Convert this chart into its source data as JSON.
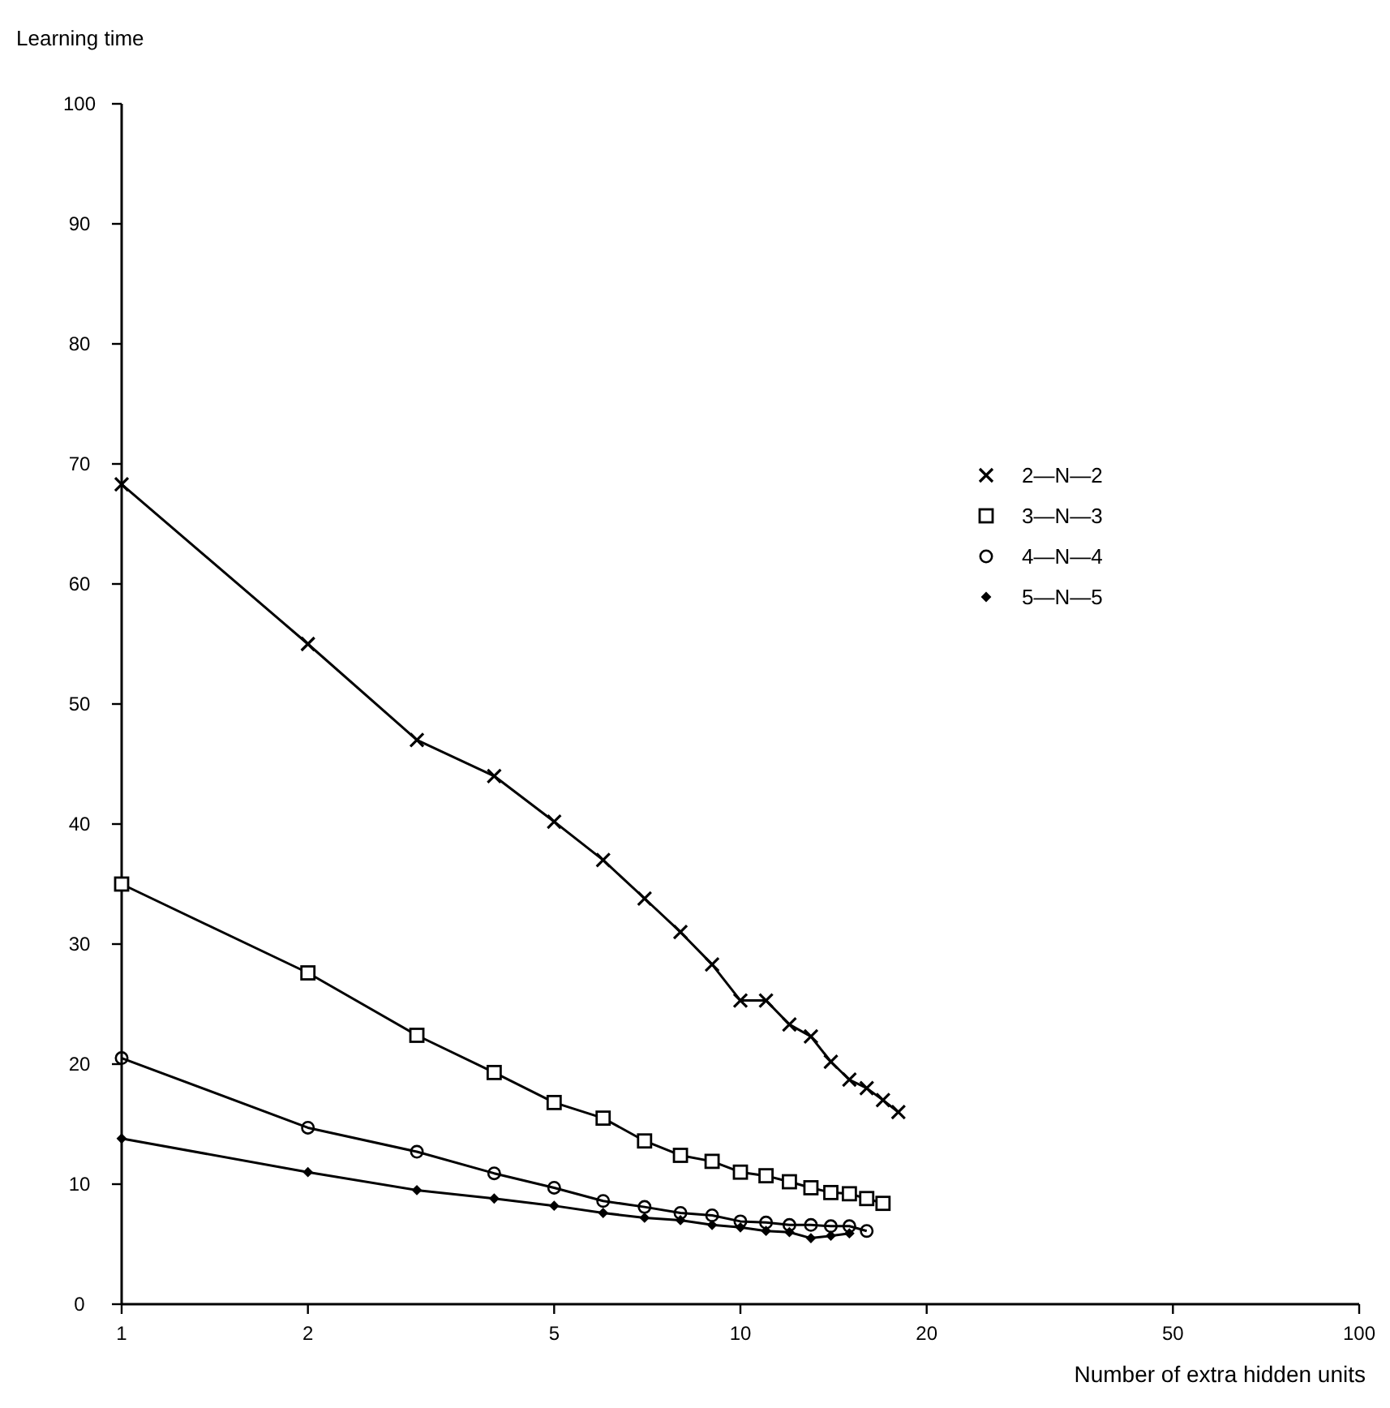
{
  "chart_data": {
    "type": "line",
    "xlabel": "Number of extra hidden units",
    "ylabel": "Learning time",
    "log": "x",
    "xlim": [
      1,
      100
    ],
    "xticks": [
      1,
      2,
      5,
      10,
      20,
      50,
      100
    ],
    "ylim": [
      0,
      100
    ],
    "yticks": [
      0,
      10,
      20,
      30,
      40,
      50,
      60,
      70,
      80,
      90,
      100
    ],
    "grid": false,
    "legend": "right",
    "line_style": "solid",
    "x": [
      1,
      2,
      3,
      4,
      5,
      6,
      7,
      8,
      9,
      10,
      11,
      12,
      13,
      14,
      15,
      16,
      17,
      18
    ],
    "series": [
      {
        "name": "2—N—2",
        "color": "#000000",
        "marker": "cross",
        "values": [
          68.3,
          55,
          47,
          44,
          40.2,
          37,
          33.8,
          31,
          28.3,
          25.3,
          25.3,
          23.3,
          22.3,
          20.2,
          18.7,
          18,
          17,
          16
        ]
      },
      {
        "name": "3—N—3",
        "color": "#000000",
        "marker": "square",
        "values": [
          35,
          27.6,
          22.4,
          19.3,
          16.8,
          15.5,
          13.6,
          12.4,
          11.9,
          11,
          10.7,
          10.2,
          9.7,
          9.3,
          9.2,
          8.8,
          8.4,
          null
        ]
      },
      {
        "name": "4—N—4",
        "color": "#000000",
        "marker": "circle",
        "values": [
          20.5,
          14.7,
          12.7,
          10.9,
          9.7,
          8.6,
          8.1,
          7.6,
          7.4,
          6.9,
          6.8,
          6.6,
          6.6,
          6.5,
          6.5,
          6.1,
          null,
          null
        ]
      },
      {
        "name": "5—N—5",
        "color": "#000000",
        "marker": "diamond",
        "values": [
          13.8,
          11,
          9.5,
          8.8,
          8.2,
          7.6,
          7.2,
          7,
          6.6,
          6.4,
          6.1,
          6,
          5.5,
          5.7,
          5.9,
          null,
          null,
          null
        ]
      }
    ]
  }
}
